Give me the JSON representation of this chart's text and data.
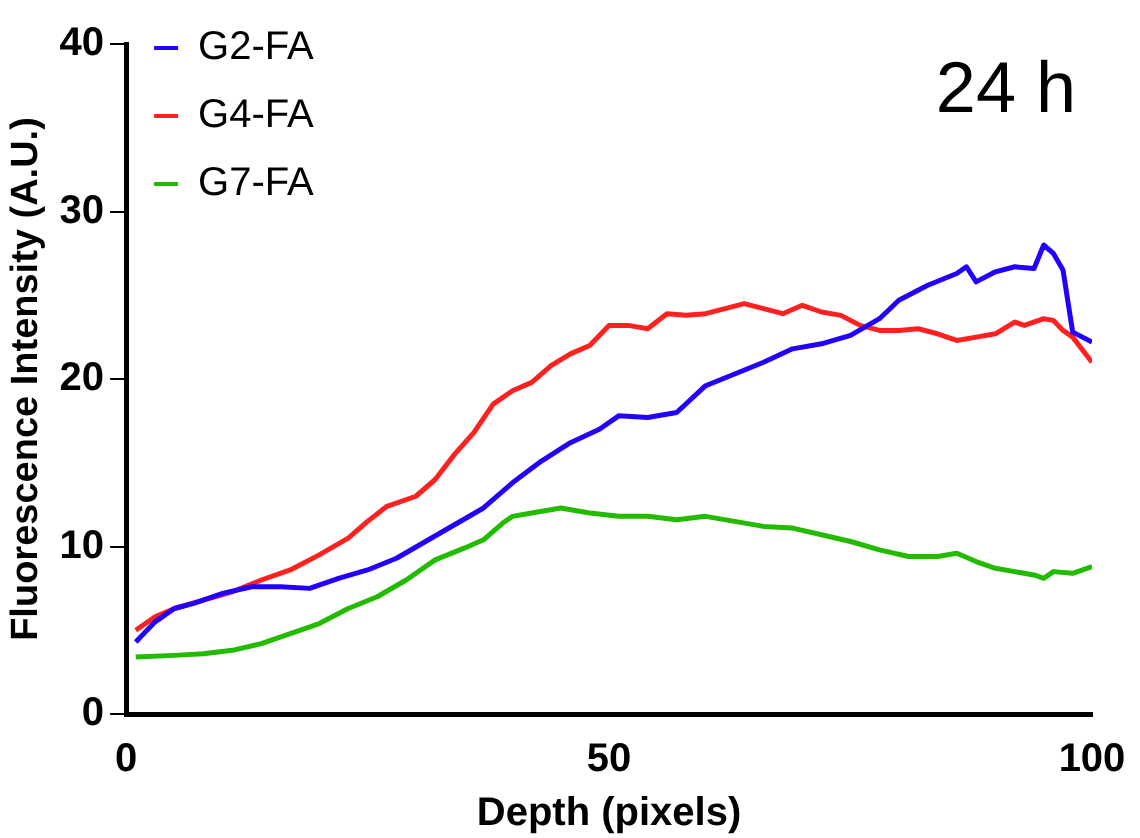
{
  "chart_data": {
    "type": "line",
    "title": "24 h",
    "xlabel": "Depth (pixels)",
    "ylabel": "Fluorescence Intensity (A.U.)",
    "xlim": [
      0,
      100
    ],
    "xticks": [
      0,
      50,
      100
    ],
    "ylim": [
      0,
      40
    ],
    "yticks": [
      0,
      10,
      20,
      30,
      40
    ],
    "grid": false,
    "legend": "top left",
    "marker": "none",
    "line_style": "solid",
    "series": [
      {
        "name": "G2-FA",
        "color": "#2200ff",
        "x": [
          1,
          3,
          5,
          7,
          10,
          13,
          16,
          19,
          22,
          25,
          28,
          31,
          34,
          37,
          40,
          43,
          46,
          49,
          51,
          54,
          57,
          60,
          63,
          66,
          69,
          72,
          75,
          78,
          80,
          83,
          86,
          87,
          88,
          90,
          92,
          94,
          95,
          96,
          97,
          98,
          100
        ],
        "values": [
          4.3,
          5.5,
          6.3,
          6.6,
          7.2,
          7.6,
          7.6,
          7.5,
          8.1,
          8.6,
          9.3,
          10.3,
          11.3,
          12.3,
          13.8,
          15.1,
          16.2,
          17.0,
          17.8,
          17.7,
          18.0,
          19.6,
          20.3,
          21.0,
          21.8,
          22.1,
          22.6,
          23.6,
          24.7,
          25.6,
          26.3,
          26.7,
          25.8,
          26.4,
          26.7,
          26.6,
          28.0,
          27.5,
          26.5,
          22.8,
          22.2
        ]
      },
      {
        "name": "G4-FA",
        "color": "#ff2020",
        "x": [
          1,
          3,
          5,
          8,
          11,
          14,
          17,
          20,
          23,
          25,
          27,
          30,
          32,
          34,
          36,
          38,
          40,
          42,
          44,
          46,
          48,
          50,
          52,
          54,
          56,
          58,
          60,
          62,
          64,
          66,
          68,
          70,
          72,
          74,
          76,
          78,
          80,
          82,
          84,
          86,
          88,
          90,
          92,
          93,
          95,
          96,
          97,
          98,
          100
        ],
        "values": [
          5.0,
          5.8,
          6.3,
          6.8,
          7.3,
          8.0,
          8.6,
          9.5,
          10.5,
          11.5,
          12.4,
          13.0,
          14.0,
          15.5,
          16.8,
          18.5,
          19.3,
          19.8,
          20.8,
          21.5,
          22.0,
          23.2,
          23.2,
          23.0,
          23.9,
          23.8,
          23.9,
          24.2,
          24.5,
          24.2,
          23.9,
          24.4,
          24.0,
          23.8,
          23.2,
          22.9,
          22.9,
          23.0,
          22.7,
          22.3,
          22.5,
          22.7,
          23.4,
          23.2,
          23.6,
          23.5,
          22.9,
          22.5,
          21.0
        ]
      },
      {
        "name": "G7-FA",
        "color": "#22bb00",
        "x": [
          1,
          5,
          8,
          11,
          14,
          17,
          20,
          23,
          26,
          29,
          32,
          35,
          37,
          39,
          40,
          42,
          45,
          48,
          51,
          54,
          57,
          60,
          63,
          66,
          69,
          72,
          75,
          78,
          81,
          84,
          86,
          88,
          90,
          92,
          94,
          95,
          96,
          98,
          100
        ],
        "values": [
          3.4,
          3.5,
          3.6,
          3.8,
          4.2,
          4.8,
          5.4,
          6.3,
          7.0,
          8.0,
          9.2,
          9.9,
          10.4,
          11.4,
          11.8,
          12.0,
          12.3,
          12.0,
          11.8,
          11.8,
          11.6,
          11.8,
          11.5,
          11.2,
          11.1,
          10.7,
          10.3,
          9.8,
          9.4,
          9.4,
          9.6,
          9.1,
          8.7,
          8.5,
          8.3,
          8.1,
          8.5,
          8.4,
          8.8
        ]
      }
    ]
  }
}
